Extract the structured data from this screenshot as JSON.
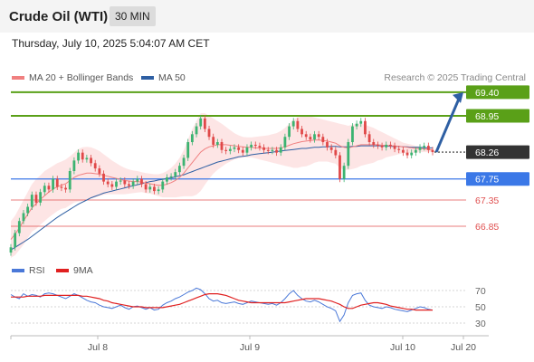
{
  "header": {
    "title": "Crude Oil (WTI)",
    "timeframe": "30 MIN"
  },
  "timestamp": "Thursday, July 10, 2025 5:04:07 AM CET",
  "legend": {
    "ma20_label": "MA 20 + Bollinger Bands",
    "ma50_label": "MA 50",
    "credit": "Research © 2025 Trading Central"
  },
  "rsi_legend": {
    "rsi_label": "RSI",
    "ma_label": "9MA"
  },
  "colors": {
    "ma20": "#f08080",
    "ma50": "#2e5fa3",
    "bb_fill": "#fde0e0",
    "target": "#5aa018",
    "pivot": "#3b78e7",
    "support": "#e05050",
    "up": "#3cb371",
    "down": "#e04848",
    "rsi": "#4a78d8",
    "rsi_ma": "#e02020",
    "last": "#333333",
    "arrow": "#2e5fa3"
  },
  "chart_data": [
    {
      "type": "candlestick",
      "x_labels": [
        "Jul 8",
        "Jul 9",
        "Jul 10",
        "Jul 20"
      ],
      "ylim": [
        66.3,
        69.5
      ],
      "levels": [
        {
          "value": 69.4,
          "label": "69.40",
          "kind": "target"
        },
        {
          "value": 68.95,
          "label": "68.95",
          "kind": "target"
        },
        {
          "value": 68.26,
          "label": "68.26",
          "kind": "last"
        },
        {
          "value": 67.75,
          "label": "67.75",
          "kind": "pivot"
        },
        {
          "value": 67.35,
          "label": "67.35",
          "kind": "support"
        },
        {
          "value": 66.85,
          "label": "66.85",
          "kind": "support"
        }
      ],
      "arrow": {
        "from": 68.26,
        "to": 69.4
      },
      "close": [
        66.45,
        66.72,
        66.95,
        67.1,
        67.22,
        67.45,
        67.3,
        67.5,
        67.62,
        67.55,
        67.75,
        67.6,
        67.58,
        67.55,
        67.9,
        68.1,
        68.25,
        68.12,
        68.15,
        68.05,
        67.95,
        67.85,
        67.7,
        67.65,
        67.6,
        67.7,
        67.72,
        67.65,
        67.62,
        67.7,
        67.75,
        67.65,
        67.55,
        67.6,
        67.52,
        67.55,
        67.7,
        67.78,
        67.8,
        67.88,
        68.0,
        68.15,
        68.45,
        68.6,
        68.75,
        68.9,
        68.7,
        68.55,
        68.4,
        68.45,
        68.3,
        68.28,
        68.32,
        68.35,
        68.3,
        68.25,
        68.35,
        68.4,
        68.38,
        68.35,
        68.3,
        68.28,
        68.3,
        68.25,
        68.35,
        68.55,
        68.75,
        68.85,
        68.7,
        68.6,
        68.55,
        68.5,
        68.6,
        68.55,
        68.45,
        68.35,
        68.3,
        68.2,
        67.75,
        68.0,
        68.45,
        68.75,
        68.8,
        68.85,
        68.6,
        68.45,
        68.4,
        68.38,
        68.35,
        68.4,
        68.38,
        68.32,
        68.3,
        68.25,
        68.2,
        68.25,
        68.3,
        68.35,
        68.38,
        68.3,
        68.26
      ],
      "ma20": [
        66.6,
        66.7,
        66.82,
        66.95,
        67.08,
        67.2,
        67.28,
        67.36,
        67.43,
        67.5,
        67.56,
        67.6,
        67.63,
        67.66,
        67.72,
        67.78,
        67.82,
        67.84,
        67.86,
        67.86,
        67.85,
        67.84,
        67.82,
        67.8,
        67.78,
        67.76,
        67.74,
        67.72,
        67.71,
        67.7,
        67.7,
        67.69,
        67.67,
        67.66,
        67.64,
        67.63,
        67.63,
        67.65,
        67.68,
        67.72,
        67.78,
        67.86,
        67.96,
        68.06,
        68.16,
        68.26,
        68.32,
        68.36,
        68.38,
        68.4,
        68.4,
        68.4,
        68.39,
        68.38,
        68.37,
        68.36,
        68.35,
        68.35,
        68.34,
        68.34,
        68.33,
        68.33,
        68.33,
        68.33,
        68.34,
        68.36,
        68.39,
        68.42,
        68.44,
        68.46,
        68.47,
        68.48,
        68.49,
        68.49,
        68.48,
        68.47,
        68.45,
        68.43,
        68.38,
        68.35,
        68.34,
        68.36,
        68.38,
        68.4,
        68.4,
        68.4,
        68.4,
        68.4,
        68.39,
        68.39,
        68.38,
        68.38,
        68.37,
        68.36,
        68.35,
        68.34,
        68.33,
        68.33,
        68.32,
        68.31,
        68.3
      ],
      "bb_upper": [
        66.95,
        67.05,
        67.2,
        67.35,
        67.5,
        67.65,
        67.75,
        67.82,
        67.9,
        67.95,
        68.0,
        68.05,
        68.08,
        68.12,
        68.18,
        68.25,
        68.32,
        68.35,
        68.36,
        68.35,
        68.32,
        68.28,
        68.22,
        68.16,
        68.1,
        68.05,
        68.0,
        67.96,
        67.93,
        67.91,
        67.9,
        67.88,
        67.86,
        67.85,
        67.84,
        67.84,
        67.86,
        67.9,
        67.96,
        68.04,
        68.15,
        68.3,
        68.5,
        68.7,
        68.85,
        69.0,
        69.0,
        68.95,
        68.9,
        68.85,
        68.8,
        68.74,
        68.68,
        68.62,
        68.58,
        68.55,
        68.54,
        68.54,
        68.55,
        68.56,
        68.57,
        68.58,
        68.6,
        68.62,
        68.66,
        68.72,
        68.8,
        68.88,
        68.92,
        68.94,
        68.95,
        68.94,
        68.92,
        68.9,
        68.88,
        68.86,
        68.84,
        68.82,
        68.8,
        68.78,
        68.76,
        68.78,
        68.8,
        68.8,
        68.78,
        68.75,
        68.72,
        68.68,
        68.64,
        68.6,
        68.56,
        68.52,
        68.48,
        68.44,
        68.42,
        68.4,
        68.38,
        68.37,
        68.36,
        68.35,
        68.34
      ],
      "bb_lower": [
        66.25,
        66.3,
        66.4,
        66.5,
        66.62,
        66.75,
        66.8,
        66.88,
        66.95,
        67.02,
        67.08,
        67.14,
        67.18,
        67.2,
        67.25,
        67.3,
        67.32,
        67.33,
        67.36,
        67.38,
        67.4,
        67.42,
        67.45,
        67.46,
        67.46,
        67.46,
        67.46,
        67.46,
        67.47,
        67.48,
        67.49,
        67.5,
        67.48,
        67.47,
        67.45,
        67.42,
        67.4,
        67.4,
        67.4,
        67.4,
        67.41,
        67.42,
        67.42,
        67.42,
        67.45,
        67.52,
        67.64,
        67.75,
        67.85,
        67.92,
        67.98,
        68.04,
        68.08,
        68.12,
        68.14,
        68.16,
        68.16,
        68.16,
        68.14,
        68.12,
        68.1,
        68.08,
        68.06,
        68.04,
        68.02,
        68.0,
        67.98,
        67.96,
        67.96,
        67.98,
        67.99,
        68.02,
        68.06,
        68.08,
        68.08,
        68.08,
        68.06,
        68.04,
        67.96,
        67.92,
        67.92,
        67.94,
        67.96,
        68.0,
        68.02,
        68.04,
        68.06,
        68.1,
        68.12,
        68.16,
        68.18,
        68.2,
        68.22,
        68.24,
        68.24,
        68.25,
        68.25,
        68.26,
        68.26,
        68.26,
        68.26
      ],
      "ma50": [
        66.4,
        66.45,
        66.5,
        66.55,
        66.6,
        66.66,
        66.72,
        66.78,
        66.84,
        66.9,
        66.96,
        67.02,
        67.07,
        67.12,
        67.17,
        67.22,
        67.27,
        67.31,
        67.35,
        67.39,
        67.42,
        67.45,
        67.48,
        67.5,
        67.52,
        67.54,
        67.56,
        67.58,
        67.6,
        67.62,
        67.64,
        67.66,
        67.68,
        67.7,
        67.71,
        67.73,
        67.74,
        67.76,
        67.77,
        67.79,
        67.81,
        67.83,
        67.86,
        67.89,
        67.92,
        67.95,
        67.98,
        68.01,
        68.04,
        68.07,
        68.09,
        68.11,
        68.13,
        68.15,
        68.17,
        68.18,
        68.19,
        68.21,
        68.22,
        68.23,
        68.24,
        68.25,
        68.26,
        68.27,
        68.28,
        68.29,
        68.3,
        68.31,
        68.32,
        68.33,
        68.33,
        68.34,
        68.35,
        68.35,
        68.36,
        68.36,
        68.37,
        68.37,
        68.36,
        68.36,
        68.36,
        68.37,
        68.37,
        68.38,
        68.38,
        68.38,
        68.38,
        68.38,
        68.38,
        68.38,
        68.37,
        68.37,
        68.37,
        68.36,
        68.36,
        68.35,
        68.35,
        68.35,
        68.34,
        68.34,
        68.34
      ]
    },
    {
      "type": "line",
      "title": "RSI",
      "y_ticks": [
        70,
        50,
        30
      ],
      "ylim": [
        20,
        80
      ],
      "series": [
        {
          "name": "RSI",
          "values": [
            65,
            62,
            60,
            66,
            63,
            65,
            64,
            62,
            66,
            67,
            66,
            64,
            62,
            60,
            63,
            66,
            64,
            61,
            58,
            56,
            55,
            52,
            50,
            49,
            48,
            50,
            52,
            49,
            47,
            50,
            51,
            49,
            47,
            49,
            46,
            47,
            52,
            55,
            57,
            60,
            62,
            65,
            68,
            70,
            73,
            71,
            66,
            60,
            57,
            58,
            55,
            54,
            55,
            56,
            54,
            53,
            55,
            57,
            56,
            55,
            54,
            53,
            54,
            52,
            55,
            60,
            66,
            70,
            64,
            60,
            57,
            56,
            58,
            56,
            53,
            50,
            48,
            45,
            32,
            40,
            55,
            64,
            66,
            67,
            58,
            52,
            50,
            49,
            48,
            50,
            49,
            47,
            46,
            45,
            44,
            46,
            48,
            50,
            49,
            47,
            46
          ]
        },
        {
          "name": "9MA",
          "values": [
            62,
            62,
            62,
            62,
            63,
            63,
            63,
            63,
            64,
            64,
            64,
            64,
            64,
            64,
            64,
            64,
            64,
            63,
            63,
            62,
            61,
            60,
            58,
            57,
            55,
            54,
            53,
            52,
            51,
            50,
            50,
            50,
            49,
            49,
            49,
            49,
            49,
            50,
            51,
            52,
            53,
            55,
            57,
            59,
            61,
            63,
            65,
            66,
            66,
            66,
            65,
            64,
            62,
            60,
            58,
            57,
            56,
            55,
            55,
            55,
            55,
            55,
            55,
            55,
            55,
            55,
            56,
            57,
            58,
            59,
            60,
            60,
            60,
            60,
            59,
            58,
            57,
            55,
            53,
            50,
            48,
            48,
            50,
            52,
            53,
            54,
            55,
            55,
            54,
            53,
            51,
            50,
            49,
            48,
            47,
            47,
            46,
            46,
            46,
            46,
            46
          ]
        }
      ]
    }
  ]
}
